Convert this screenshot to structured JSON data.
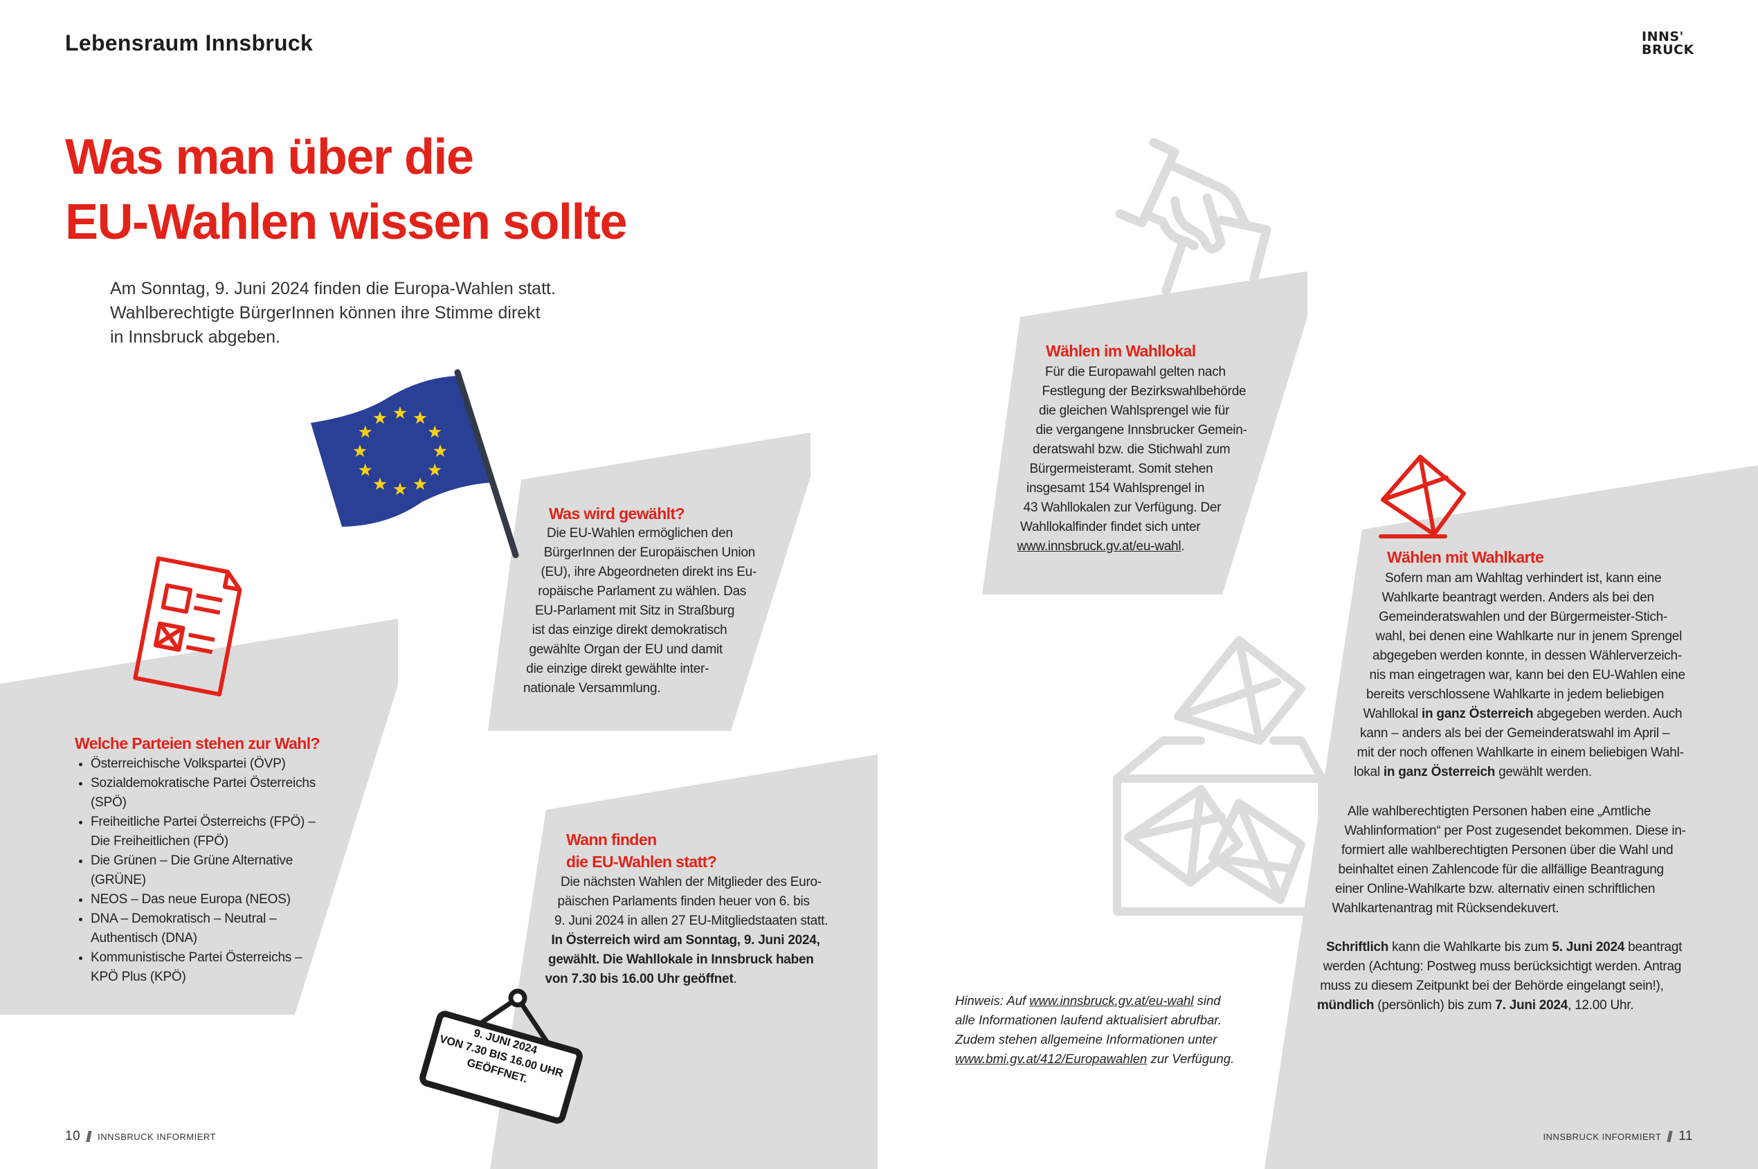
{
  "header": {
    "section": "Lebensraum Innsbruck",
    "logo_line1": "INNS'",
    "logo_line2": "BRUCK"
  },
  "title": {
    "line1": "Was man über die",
    "line2": "EU-Wahlen wissen sollte"
  },
  "intro": {
    "lines": [
      "Am Sonntag, 9. Juni 2024 finden die Europa-Wahlen statt.",
      "Wahlberechtigte BürgerInnen können ihre Stimme direkt",
      "in Innsbruck abgeben."
    ]
  },
  "colors": {
    "accent": "#e2231a",
    "panel": "#dcdcdc",
    "flag_blue": "#2a3f96",
    "flag_star": "#f7d117",
    "text": "#222222"
  },
  "icons": [
    "eu-flag-icon",
    "ballot-paper-icon",
    "hand-ballot-icon",
    "envelope-ballot-icon",
    "ballot-box-icon",
    "open-sign-icon"
  ],
  "was_wird": {
    "heading": "Was wird gewählt?",
    "lines": [
      "Die EU-Wahlen ermöglichen den",
      "BürgerInnen der Europäischen Union",
      "(EU), ihre Abgeordneten direkt ins Eu-",
      "ropäische Parlament zu wählen. Das",
      "EU-Parlament mit Sitz in Straßburg",
      "ist das einzige direkt demokratisch",
      "gewählte Organ der EU und damit",
      "die einzige direkt gewählte inter-",
      "nationale Versammlung."
    ]
  },
  "parteien": {
    "heading": "Welche Parteien stehen zur Wahl?",
    "items": [
      "Österreichische Volkspartei (ÖVP)",
      "Sozialdemokratische Partei Österreichs (SPÖ)",
      "Freiheitliche Partei Österreichs (FPÖ) – Die Freiheitlichen (FPÖ)",
      "Die Grünen – Die Grüne Alternative (GRÜNE)",
      "NEOS – Das neue Europa (NEOS)",
      "DNA – Demokratisch – Neutral – Authentisch (DNA)",
      "Kommunistische Partei Österreichs – KPÖ Plus (KPÖ)"
    ]
  },
  "wann": {
    "heading_line1": "Wann finden",
    "heading_line2": "die EU-Wahlen statt?",
    "lines": [
      "Die nächsten Wahlen der Mitglieder des Euro-",
      "päischen Parlaments finden heuer von 6. bis",
      "9. Juni 2024 in allen 27 EU-Mitgliedstaaten statt.",
      [
        {
          "t": "In Österreich wird am Sonntag, 9. Juni 2024,",
          "b": true
        }
      ],
      [
        {
          "t": "gewählt. Die Wahllokale in Innsbruck haben",
          "b": true
        }
      ],
      [
        {
          "t": "von 7.30 bis 16.00 Uhr geöffnet",
          "b": true
        },
        {
          "t": "."
        }
      ]
    ]
  },
  "sign": {
    "line1": "9. JUNI 2024",
    "line2": "VON 7.30 BIS 16.00 UHR",
    "line3": "GEÖFFNET."
  },
  "wahllokal": {
    "heading": "Wählen im Wahllokal",
    "lines": [
      "Für die Europawahl gelten nach",
      "Festlegung der Bezirkswahlbehörde",
      "die gleichen Wahlsprengel wie für",
      "die vergangene Innsbrucker Gemein-",
      "deratswahl bzw. die Stichwahl zum",
      "Bürgermeisteramt. Somit stehen",
      "insgesamt 154 Wahlsprengel in",
      "43 Wahllokalen zur Verfügung. Der",
      "Wahllokalfinder findet sich unter",
      [
        {
          "t": "www.innsbruck.gv.at/eu-wahl",
          "u": true
        },
        {
          "t": "."
        }
      ]
    ]
  },
  "wahlkarte": {
    "heading": "Wählen mit Wahlkarte",
    "p1": [
      "Sofern man am Wahltag verhindert ist, kann eine",
      "Wahlkarte beantragt werden. Anders als bei den",
      "Gemeinderatswahlen und der Bürgermeister-Stich-",
      "wahl, bei denen eine Wahlkarte nur in jenem Sprengel",
      "abgegeben werden konnte, in dessen Wählerverzeich-",
      "nis man eingetragen war, kann bei den EU-Wahlen eine",
      "bereits verschlossene Wahlkarte in jedem beliebigen",
      [
        {
          "t": "Wahllokal "
        },
        {
          "t": "in ganz Österreich",
          "b": true
        },
        {
          "t": " abgegeben werden. Auch"
        }
      ],
      "kann – anders als bei der Gemeinderatswahl im April –",
      "mit der noch offenen Wahlkarte in einem beliebigen Wahl-",
      [
        {
          "t": "lokal "
        },
        {
          "t": "in ganz Österreich",
          "b": true
        },
        {
          "t": " gewählt werden."
        }
      ]
    ],
    "p2": [
      "Alle wahlberechtigten Personen haben eine „Amtliche",
      "Wahlinformation“ per Post zugesendet bekommen. Diese in-",
      "formiert alle wahlberechtigten Personen über die Wahl und",
      "beinhaltet einen Zahlencode für die allfällige Beantragung",
      "einer Online-Wahlkarte bzw. alternativ einen schriftlichen",
      "Wahlkartenantrag mit Rücksendekuvert."
    ],
    "p3": [
      [
        {
          "t": "Schriftlich",
          "b": true
        },
        {
          "t": " kann die Wahlkarte bis zum "
        },
        {
          "t": "5. Juni 2024",
          "b": true
        },
        {
          "t": " beantragt"
        }
      ],
      "werden (Achtung: Postweg muss berücksichtigt werden. Antrag",
      "muss zu diesem Zeitpunkt bei der Behörde eingelangt sein!),",
      [
        {
          "t": "mündlich",
          "b": true
        },
        {
          "t": " (persönlich) bis zum "
        },
        {
          "t": "7. Juni 2024",
          "b": true
        },
        {
          "t": ", 12.00 Uhr."
        }
      ]
    ]
  },
  "hinweis": {
    "prefix": "Hinweis: Auf ",
    "link1": "www.innsbruck.gv.at/eu-wahl",
    "mid1": " sind",
    "line2": "alle Informationen laufend aktualisiert abrufbar.",
    "line3": "Zudem stehen allgemeine Informationen unter",
    "link2": "www.bmi.gv.at/412/Europawahlen",
    "suffix": " zur Verfügung."
  },
  "footer": {
    "left_page": "10",
    "right_page": "11",
    "publication": "INNSBRUCK INFORMIERT"
  }
}
